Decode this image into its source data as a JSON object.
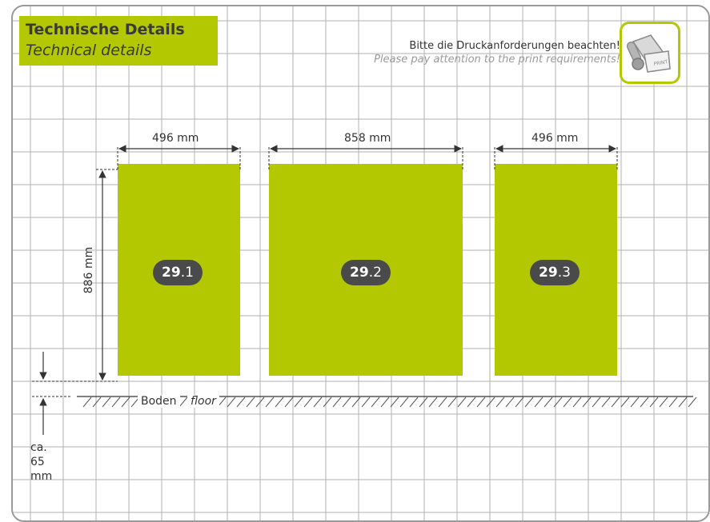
{
  "header": {
    "title_de": "Technische Details",
    "title_en": "Technical details"
  },
  "notice": {
    "de": "Bitte die Druckanforderungen beachten!",
    "en": "Please pay attention to the print requirements!"
  },
  "badge": {
    "icon": "print-roll-icon",
    "text": "PRINT"
  },
  "panels": [
    {
      "number": "29",
      "suffix": ".1",
      "width_label": "496 mm"
    },
    {
      "number": "29",
      "suffix": ".2",
      "width_label": "858 mm"
    },
    {
      "number": "29",
      "suffix": ".3",
      "width_label": "496 mm"
    }
  ],
  "height_label": "886 mm",
  "floor": {
    "de": "Boden",
    "en": "floor"
  },
  "gap_label": {
    "line1": "ca.",
    "line2": "65",
    "line3": "mm"
  },
  "colors": {
    "accent": "#b3c800",
    "badge": "#4a4a4a",
    "grid": "#b0b0b0"
  }
}
